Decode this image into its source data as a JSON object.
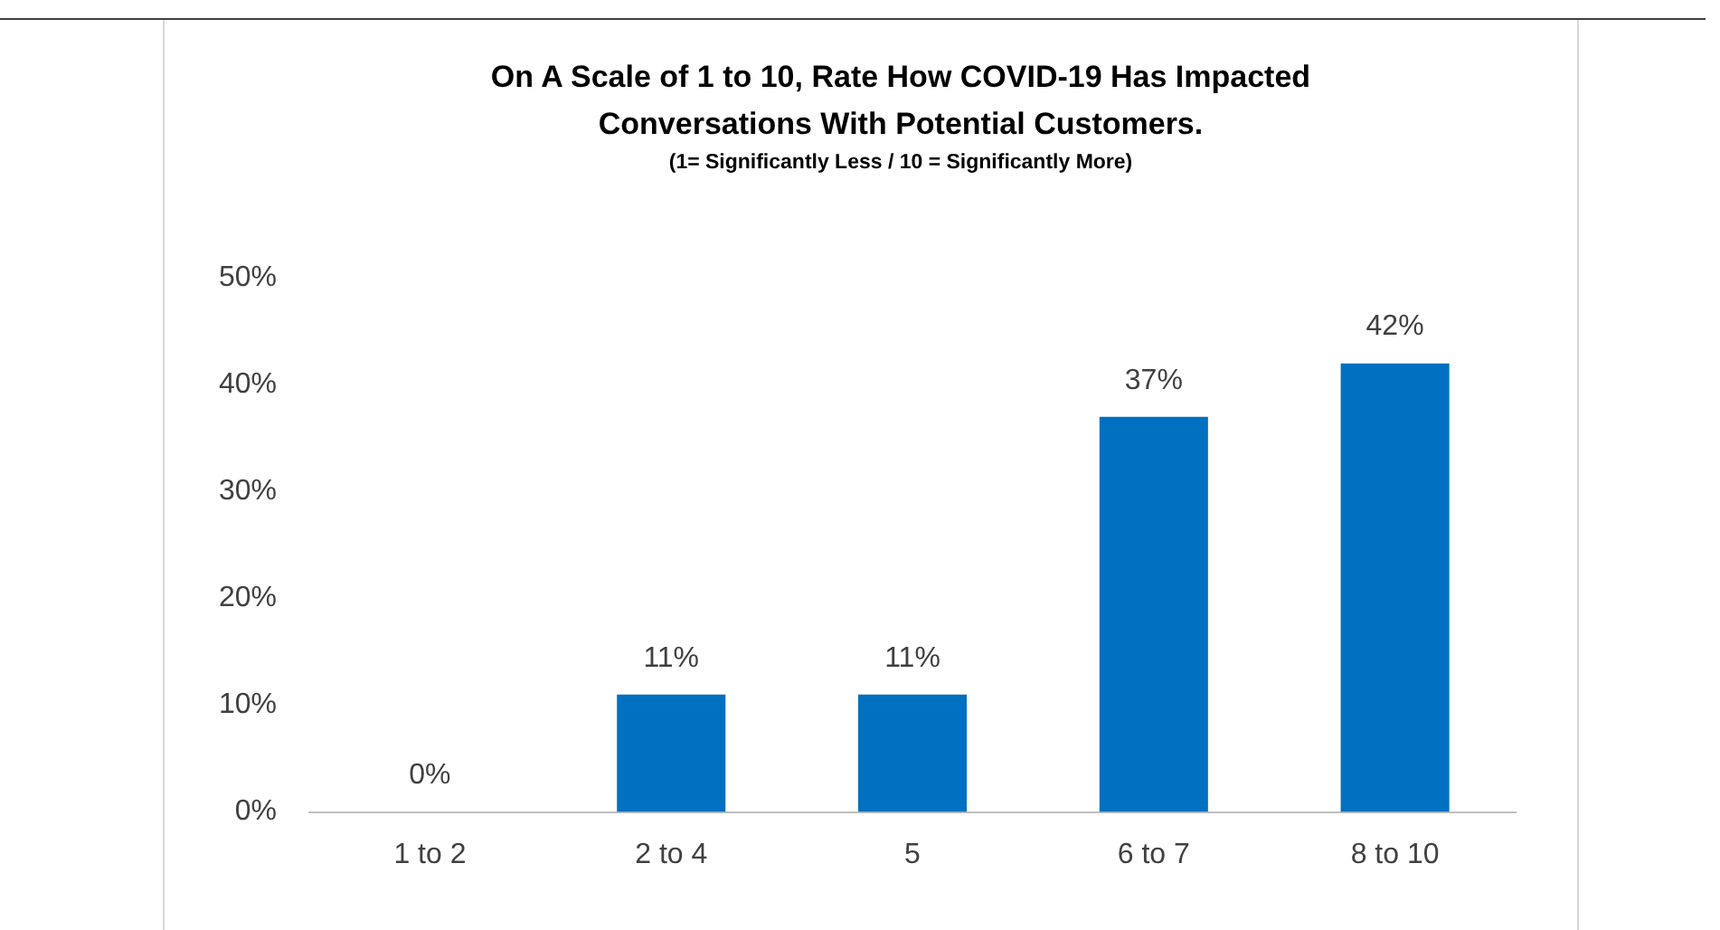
{
  "chart_data": {
    "type": "bar",
    "title": "On A Scale of 1 to 10, Rate How COVID-19 Has Impacted Conversations With Potential Customers.",
    "subtitle": "(1= Significantly Less / 10 = Significantly More)",
    "categories": [
      "1 to 2",
      "2 to 4",
      "5",
      "6 to 7",
      "8 to 10"
    ],
    "values": [
      0,
      11,
      11,
      37,
      42
    ],
    "color": "#0070c0",
    "value_labels": [
      "0%",
      "11%",
      "11%",
      "37%",
      "42%"
    ],
    "ylim": [
      0,
      50
    ],
    "yticks": [
      {
        "value": 0,
        "label": "0%"
      },
      {
        "value": 10,
        "label": "10%"
      },
      {
        "value": 20,
        "label": "20%"
      },
      {
        "value": 30,
        "label": "30%"
      },
      {
        "value": 40,
        "label": "40%"
      },
      {
        "value": 50,
        "label": "50%"
      }
    ],
    "grid": false,
    "legend": false
  }
}
